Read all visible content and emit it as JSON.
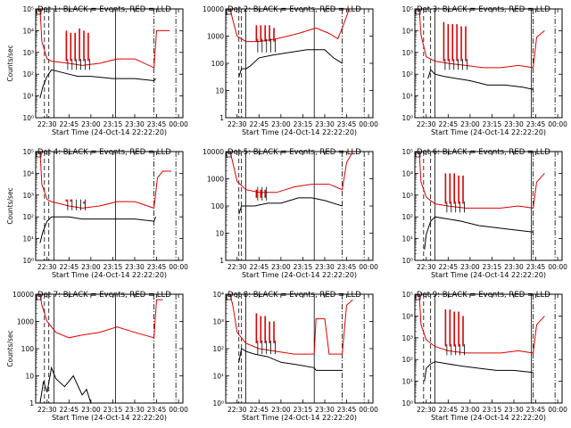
{
  "chart_data": [
    {
      "type": "line",
      "title": "Det 1: BLACK = Events, RED = LLD",
      "xlabel": "Start Time (24-Oct-14 22:22:20)",
      "ylabel": "Counts/sec",
      "ylog": true,
      "ylim_exp": [
        0,
        5
      ],
      "ytick_labels": [
        "10⁰",
        "10¹",
        "10²",
        "10³",
        "10⁴",
        "10⁵"
      ],
      "xticks": [
        "22:30",
        "22:45",
        "23:00",
        "23:15",
        "23:30",
        "23:45",
        "00:00"
      ],
      "series": [
        {
          "name": "Events",
          "color": "#000000",
          "x": [
            22.42,
            22.45,
            22.5,
            22.55,
            22.75,
            22.85,
            23.0,
            23.25,
            23.5,
            23.72,
            23.74
          ],
          "y": [
            0.9,
            1.4,
            1.9,
            2.2,
            2.0,
            1.9,
            1.9,
            1.8,
            1.8,
            1.7,
            1.8
          ]
        },
        {
          "name": "LLD",
          "color": "#dd0000",
          "x": [
            22.42,
            22.44,
            22.5,
            22.55,
            22.75,
            22.9,
            23.1,
            23.3,
            23.5,
            23.72,
            23.75,
            23.82,
            23.9
          ],
          "y": [
            5.0,
            3.5,
            2.7,
            2.6,
            2.5,
            2.4,
            2.5,
            2.7,
            2.7,
            2.3,
            4.0,
            4.0,
            4.0
          ]
        }
      ],
      "spikes": {
        "x": [
          22.72,
          22.77,
          22.82,
          22.87,
          22.92,
          22.97
        ],
        "y": [
          4.0,
          3.9,
          3.9,
          4.1,
          4.0,
          3.9
        ]
      },
      "dashed": [
        22.47,
        22.52
      ],
      "solid": [
        22.58,
        23.28
      ],
      "dashdot": [
        23.72,
        23.97
      ]
    },
    {
      "type": "line",
      "title": "Det 2: BLACK = Events, RED = LLD",
      "xlabel": "Start Time (24-Oct-14 22:22:20)",
      "ylabel": "",
      "ylog": true,
      "ylim_exp": [
        0,
        4
      ],
      "ytick_labels": [
        "1",
        "10",
        "100",
        "1000",
        "10000"
      ],
      "xticks": [
        "22:30",
        "22:45",
        "23:00",
        "23:15",
        "23:30",
        "23:45",
        "00:00"
      ],
      "series": [
        {
          "name": "Events",
          "color": "#000000",
          "x": [
            22.52,
            22.55,
            22.6,
            22.65,
            22.75,
            22.9,
            23.1,
            23.3,
            23.5,
            23.6,
            23.7
          ],
          "y": [
            1.5,
            1.8,
            1.8,
            1.9,
            2.2,
            2.3,
            2.4,
            2.5,
            2.5,
            2.2,
            2.0
          ]
        },
        {
          "name": "LLD",
          "color": "#dd0000",
          "x": [
            22.42,
            22.45,
            22.5,
            22.6,
            22.75,
            22.95,
            23.2,
            23.4,
            23.55,
            23.65,
            23.7,
            23.78
          ],
          "y": [
            4.0,
            3.6,
            3.0,
            2.8,
            2.8,
            2.9,
            3.1,
            3.3,
            3.1,
            2.9,
            3.3,
            4.0
          ]
        }
      ],
      "spikes": {
        "x": [
          22.72,
          22.77,
          22.82,
          22.87,
          22.92
        ],
        "y": [
          3.4,
          3.4,
          3.4,
          3.4,
          3.3
        ]
      },
      "dashed": [
        22.52,
        22.55
      ],
      "solid": [
        22.6,
        23.38
      ],
      "dashdot": [
        23.7,
        23.95
      ]
    },
    {
      "type": "line",
      "title": "Det 3: BLACK = Events, RED = LLD",
      "xlabel": "Start Time (24-Oct-14 22:22:20)",
      "ylabel": "",
      "ylog": true,
      "ylim_exp": [
        0,
        5
      ],
      "ytick_labels": [
        "10⁰",
        "10¹",
        "10²",
        "10³",
        "10⁴",
        "10⁵"
      ],
      "xticks": [
        "22:30",
        "22:45",
        "23:00",
        "23:15",
        "23:30",
        "23:45",
        "00:00"
      ],
      "series": [
        {
          "name": "Events",
          "color": "#000000",
          "x": [
            22.52,
            22.55,
            22.6,
            22.7,
            22.85,
            23.0,
            23.2,
            23.4,
            23.6,
            23.72
          ],
          "y": [
            1.8,
            2.2,
            2.0,
            1.9,
            1.8,
            1.7,
            1.5,
            1.5,
            1.4,
            1.3
          ]
        },
        {
          "name": "LLD",
          "color": "#dd0000",
          "x": [
            22.42,
            22.44,
            22.5,
            22.6,
            22.75,
            22.95,
            23.15,
            23.35,
            23.55,
            23.72,
            23.76,
            23.85
          ],
          "y": [
            5.0,
            3.8,
            2.8,
            2.6,
            2.5,
            2.4,
            2.3,
            2.3,
            2.4,
            2.3,
            3.7,
            4.0
          ]
        }
      ],
      "spikes": {
        "x": [
          22.7,
          22.75,
          22.8,
          22.85,
          22.9,
          22.95
        ],
        "y": [
          4.4,
          4.3,
          4.3,
          4.3,
          4.2,
          4.2
        ]
      },
      "dashed": [
        22.47,
        22.55
      ],
      "solid": [
        22.6,
        23.7
      ],
      "dashdot": [
        23.72,
        23.97
      ]
    },
    {
      "type": "line",
      "title": "Det 4: BLACK = Events, RED = LLD",
      "xlabel": "Start Time (24-Oct-14 22:22:20)",
      "ylabel": "Counts/sec",
      "ylog": true,
      "ylim_exp": [
        0,
        5
      ],
      "ytick_labels": [
        "10⁰",
        "10¹",
        "10²",
        "10³",
        "10⁴",
        "10⁵"
      ],
      "xticks": [
        "22:30",
        "22:45",
        "23:00",
        "23:15",
        "23:30",
        "23:45",
        "00:00"
      ],
      "series": [
        {
          "name": "Events",
          "color": "#000000",
          "x": [
            22.42,
            22.45,
            22.5,
            22.55,
            22.75,
            22.9,
            23.1,
            23.3,
            23.5,
            23.72,
            23.74
          ],
          "y": [
            0.8,
            1.3,
            1.8,
            2.0,
            2.0,
            1.9,
            1.9,
            1.9,
            1.9,
            1.8,
            2.0
          ]
        },
        {
          "name": "LLD",
          "color": "#dd0000",
          "x": [
            22.42,
            22.44,
            22.5,
            22.55,
            22.75,
            22.9,
            23.1,
            23.3,
            23.5,
            23.72,
            23.76,
            23.82,
            23.92
          ],
          "y": [
            5.0,
            3.5,
            2.8,
            2.7,
            2.5,
            2.4,
            2.5,
            2.7,
            2.7,
            2.4,
            3.8,
            4.1,
            4.1
          ]
        }
      ],
      "spikes": {
        "x": [
          22.72,
          22.77,
          22.82,
          22.87,
          22.92
        ],
        "y": [
          2.8,
          2.8,
          2.7,
          2.7,
          2.6
        ]
      },
      "dashed": [
        22.47,
        22.52
      ],
      "solid": [
        22.58,
        23.28
      ],
      "dashdot": [
        23.72,
        23.97
      ]
    },
    {
      "type": "line",
      "title": "Det 5: BLACK = Events, RED = LLD",
      "xlabel": "Start Time (24-Oct-14 22:22:20)",
      "ylabel": "",
      "ylog": true,
      "ylim_exp": [
        0,
        4
      ],
      "ytick_labels": [
        "1",
        "10",
        "100",
        "1000",
        "10000"
      ],
      "xticks": [
        "22:30",
        "22:45",
        "23:00",
        "23:15",
        "23:30",
        "23:45",
        "00:00"
      ],
      "series": [
        {
          "name": "Events",
          "color": "#000000",
          "x": [
            22.52,
            22.55,
            22.6,
            22.7,
            22.85,
            23.0,
            23.2,
            23.35,
            23.5,
            23.7
          ],
          "y": [
            1.7,
            2.0,
            2.0,
            2.0,
            2.1,
            2.1,
            2.3,
            2.3,
            2.2,
            2.0
          ]
        },
        {
          "name": "LLD",
          "color": "#dd0000",
          "x": [
            22.42,
            22.45,
            22.5,
            22.6,
            22.75,
            22.95,
            23.15,
            23.35,
            23.55,
            23.7,
            23.75,
            23.82
          ],
          "y": [
            4.0,
            3.6,
            2.9,
            2.6,
            2.5,
            2.5,
            2.7,
            2.8,
            2.8,
            2.6,
            3.6,
            4.0
          ]
        }
      ],
      "spikes": {
        "x": [
          22.72,
          22.77,
          22.82
        ],
        "y": [
          2.3,
          2.3,
          2.3
        ]
      },
      "dashed": [
        22.52,
        22.55
      ],
      "solid": [
        22.6,
        23.38
      ],
      "dashdot": [
        23.7,
        23.95
      ]
    },
    {
      "type": "line",
      "title": "Det 6: BLACK = Events, RED = LLD",
      "xlabel": "Start Time (24-Oct-14 22:22:20)",
      "ylabel": "",
      "ylog": true,
      "ylim_exp": [
        0,
        5
      ],
      "ytick_labels": [
        "10⁰",
        "10¹",
        "10²",
        "10³",
        "10⁴",
        "10⁵"
      ],
      "xticks": [
        "22:30",
        "22:45",
        "23:00",
        "23:15",
        "23:30",
        "23:45",
        "00:00"
      ],
      "series": [
        {
          "name": "Events",
          "color": "#000000",
          "x": [
            22.48,
            22.5,
            22.55,
            22.6,
            22.75,
            22.9,
            23.1,
            23.3,
            23.5,
            23.72
          ],
          "y": [
            0.5,
            1.2,
            1.8,
            2.0,
            1.9,
            1.8,
            1.6,
            1.5,
            1.4,
            1.3
          ]
        },
        {
          "name": "LLD",
          "color": "#dd0000",
          "x": [
            22.42,
            22.44,
            22.5,
            22.6,
            22.75,
            22.95,
            23.15,
            23.35,
            23.55,
            23.72,
            23.76,
            23.85
          ],
          "y": [
            5.0,
            3.6,
            2.9,
            2.6,
            2.5,
            2.4,
            2.4,
            2.4,
            2.5,
            2.4,
            3.6,
            4.0
          ]
        }
      ],
      "spikes": {
        "x": [
          22.72,
          22.77,
          22.82,
          22.87,
          22.92
        ],
        "y": [
          4.0,
          4.0,
          4.0,
          3.9,
          3.9
        ]
      },
      "dashed": [
        22.47,
        22.55
      ],
      "solid": [
        22.6,
        23.7
      ],
      "dashdot": [
        23.72,
        23.97
      ]
    },
    {
      "type": "line",
      "title": "Det 7: BLACK = Events, RED = LLD",
      "xlabel": "Start Time (24-Oct-14 22:22:20)",
      "ylabel": "Counts/sec",
      "ylog": true,
      "ylim_exp": [
        0,
        4
      ],
      "ytick_labels": [
        "1",
        "10",
        "100",
        "1000",
        "10000"
      ],
      "xticks": [
        "22:30",
        "22:45",
        "23:00",
        "23:15",
        "23:30",
        "23:45",
        "00:00"
      ],
      "series": [
        {
          "name": "Events",
          "color": "#000000",
          "x": [
            22.42,
            22.46,
            22.5,
            22.55,
            22.6,
            22.7,
            22.8,
            22.9,
            22.95,
            23.0
          ],
          "y": [
            0.0,
            0.8,
            0.4,
            1.3,
            0.9,
            0.6,
            1.0,
            0.3,
            0.5,
            0.0
          ]
        },
        {
          "name": "LLD",
          "color": "#dd0000",
          "x": [
            22.42,
            22.44,
            22.5,
            22.6,
            22.75,
            22.9,
            23.1,
            23.3,
            23.5,
            23.72,
            23.75,
            23.82
          ],
          "y": [
            4.0,
            3.6,
            3.0,
            2.6,
            2.4,
            2.5,
            2.6,
            2.8,
            2.6,
            2.4,
            3.8,
            3.8
          ]
        }
      ],
      "spikes": {
        "x": [],
        "y": []
      },
      "dashed": [
        22.47,
        22.52
      ],
      "solid": [
        22.58,
        23.28
      ],
      "dashdot": [
        23.72,
        23.97
      ]
    },
    {
      "type": "line",
      "title": "Det 8: BLACK = Events, RED = LLD",
      "xlabel": "Start Time (24-Oct-14 22:22:20)",
      "ylabel": "",
      "ylog": true,
      "ylim_exp": [
        0,
        4
      ],
      "ytick_labels": [
        "10⁰",
        "10¹",
        "10²",
        "10³",
        "10⁴"
      ],
      "xticks": [
        "22:30",
        "22:45",
        "23:00",
        "23:15",
        "23:30",
        "23:45",
        "00:00"
      ],
      "series": [
        {
          "name": "Events",
          "color": "#000000",
          "x": [
            22.52,
            22.55,
            22.6,
            22.7,
            22.85,
            23.0,
            23.2,
            23.38,
            23.4,
            23.55,
            23.7
          ],
          "y": [
            1.5,
            2.0,
            1.9,
            1.8,
            1.7,
            1.5,
            1.4,
            1.3,
            1.2,
            1.2,
            1.2
          ]
        },
        {
          "name": "LLD",
          "color": "#dd0000",
          "x": [
            22.42,
            22.45,
            22.5,
            22.6,
            22.75,
            22.95,
            23.15,
            23.38,
            23.4,
            23.5,
            23.55,
            23.7,
            23.75,
            23.82
          ],
          "y": [
            4.0,
            3.6,
            2.6,
            2.2,
            2.0,
            1.9,
            1.8,
            1.8,
            3.1,
            3.1,
            1.8,
            1.8,
            3.6,
            3.8
          ]
        }
      ],
      "spikes": {
        "x": [
          22.72,
          22.77,
          22.82,
          22.87,
          22.92
        ],
        "y": [
          3.3,
          3.2,
          3.2,
          3.0,
          3.0
        ]
      },
      "dashed": [
        22.52,
        22.55
      ],
      "solid": [
        22.6,
        23.38
      ],
      "dashdot": [
        23.7,
        23.95
      ]
    },
    {
      "type": "line",
      "title": "Det 9: BLACK = Events, RED = LLD",
      "xlabel": "Start Time (24-Oct-14 22:22:20)",
      "ylabel": "",
      "ylog": true,
      "ylim_exp": [
        0,
        5
      ],
      "ytick_labels": [
        "10⁰",
        "10¹",
        "10²",
        "10³",
        "10⁴",
        "10⁵"
      ],
      "xticks": [
        "22:30",
        "22:45",
        "23:00",
        "23:15",
        "23:30",
        "23:45",
        "00:00"
      ],
      "series": [
        {
          "name": "Events",
          "color": "#000000",
          "x": [
            22.48,
            22.5,
            22.55,
            22.6,
            22.75,
            22.9,
            23.1,
            23.3,
            23.5,
            23.72
          ],
          "y": [
            1.0,
            1.6,
            1.8,
            1.9,
            1.8,
            1.7,
            1.6,
            1.5,
            1.5,
            1.4
          ]
        },
        {
          "name": "LLD",
          "color": "#dd0000",
          "x": [
            22.42,
            22.44,
            22.5,
            22.6,
            22.75,
            22.95,
            23.15,
            23.35,
            23.55,
            23.72,
            23.76,
            23.85
          ],
          "y": [
            5.0,
            3.6,
            2.9,
            2.6,
            2.4,
            2.3,
            2.3,
            2.3,
            2.4,
            2.3,
            3.6,
            4.0
          ]
        }
      ],
      "spikes": {
        "x": [
          22.72,
          22.77,
          22.82,
          22.87,
          22.92
        ],
        "y": [
          4.3,
          4.3,
          4.2,
          4.2,
          4.0
        ]
      },
      "dashed": [
        22.47,
        22.55
      ],
      "solid": [
        22.6,
        23.7
      ],
      "dashdot": [
        23.72,
        23.97
      ]
    }
  ]
}
